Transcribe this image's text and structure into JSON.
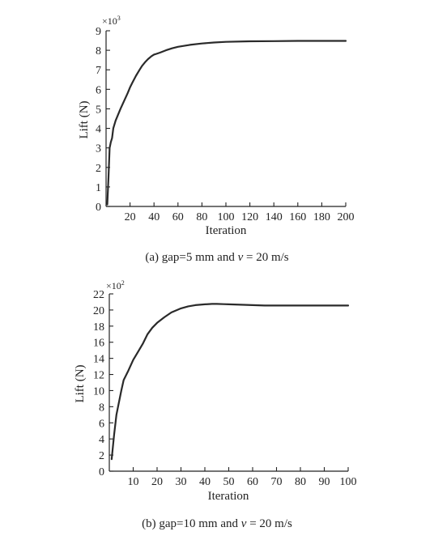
{
  "chart_data": [
    {
      "type": "line",
      "title": "",
      "caption": "(a) gap=5 mm and v = 20 m/s",
      "caption_prefix": "(a) gap=5 mm and ",
      "caption_var": "v",
      "caption_suffix": " = 20 m/s",
      "xlabel": "Iteration",
      "ylabel": "Lift (N)",
      "y_multiplier": {
        "base": "×10",
        "exp": "3"
      },
      "xlim": [
        0,
        200
      ],
      "ylim": [
        0,
        9
      ],
      "x_ticks": [
        20,
        40,
        60,
        80,
        100,
        120,
        140,
        160,
        180,
        200
      ],
      "y_ticks": [
        0,
        1,
        2,
        3,
        4,
        5,
        6,
        7,
        8,
        9
      ],
      "grid": false,
      "series": [
        {
          "x": [
            1,
            2,
            3,
            4,
            5,
            6,
            8,
            10,
            12,
            15,
            18,
            20,
            22,
            25,
            28,
            30,
            33,
            35,
            38,
            40,
            42,
            45,
            50,
            55,
            60,
            70,
            80,
            90,
            100,
            120,
            140,
            160,
            180,
            200
          ],
          "y": [
            0.1,
            1.5,
            3.0,
            3.3,
            3.5,
            4.0,
            4.4,
            4.7,
            5.0,
            5.4,
            5.8,
            6.1,
            6.35,
            6.7,
            7.0,
            7.2,
            7.42,
            7.55,
            7.7,
            7.78,
            7.82,
            7.88,
            8.0,
            8.1,
            8.18,
            8.28,
            8.35,
            8.4,
            8.43,
            8.46,
            8.47,
            8.48,
            8.48,
            8.48
          ]
        }
      ]
    },
    {
      "type": "line",
      "title": "",
      "caption": "(b) gap=10 mm and v = 20 m/s",
      "caption_prefix": "(b) gap=10 mm and ",
      "caption_var": "v",
      "caption_suffix": " = 20 m/s",
      "xlabel": "Iteration",
      "ylabel": "Lift (N)",
      "y_multiplier": {
        "base": "×10",
        "exp": "2"
      },
      "xlim": [
        0,
        100
      ],
      "ylim": [
        0,
        22
      ],
      "x_ticks": [
        10,
        20,
        30,
        40,
        50,
        60,
        70,
        80,
        90,
        100
      ],
      "y_ticks": [
        0,
        2,
        4,
        6,
        8,
        10,
        12,
        14,
        16,
        18,
        20,
        22
      ],
      "grid": false,
      "series": [
        {
          "x": [
            1,
            2,
            3,
            4,
            5,
            6,
            8,
            10,
            12,
            14,
            16,
            18,
            20,
            23,
            26,
            30,
            33,
            36,
            40,
            43,
            45,
            48,
            50,
            55,
            60,
            65,
            70,
            75,
            80,
            85,
            90,
            95,
            100
          ],
          "y": [
            1.5,
            4.5,
            7.0,
            8.5,
            10.0,
            11.3,
            12.5,
            13.8,
            14.8,
            15.8,
            17.0,
            17.8,
            18.4,
            19.1,
            19.7,
            20.2,
            20.45,
            20.6,
            20.7,
            20.75,
            20.75,
            20.72,
            20.7,
            20.65,
            20.6,
            20.55,
            20.55,
            20.55,
            20.55,
            20.55,
            20.55,
            20.55,
            20.55
          ]
        }
      ]
    }
  ]
}
